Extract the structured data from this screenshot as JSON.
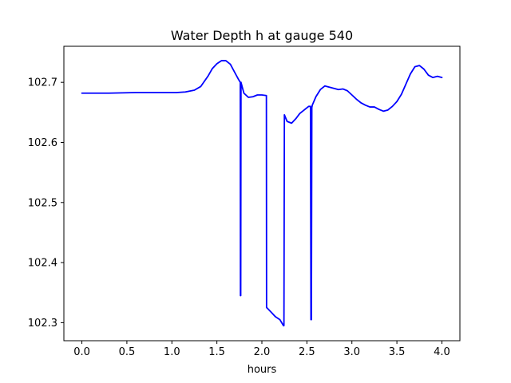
{
  "chart_data": {
    "type": "line",
    "title": "Water Depth h at gauge 540",
    "xlabel": "hours",
    "ylabel": "",
    "xlim": [
      -0.2,
      4.2
    ],
    "ylim": [
      102.27,
      102.76
    ],
    "xticks": [
      0.0,
      0.5,
      1.0,
      1.5,
      2.0,
      2.5,
      3.0,
      3.5,
      4.0
    ],
    "xtick_labels": [
      "0.0",
      "0.5",
      "1.0",
      "1.5",
      "2.0",
      "2.5",
      "3.0",
      "3.5",
      "4.0"
    ],
    "yticks": [
      102.3,
      102.4,
      102.5,
      102.6,
      102.7
    ],
    "ytick_labels": [
      "102.3",
      "102.4",
      "102.5",
      "102.6",
      "102.7"
    ],
    "grid": false,
    "series": [
      {
        "color": "#0000ff",
        "x": [
          0.0,
          0.3,
          0.6,
          0.9,
          1.05,
          1.15,
          1.25,
          1.32,
          1.4,
          1.45,
          1.5,
          1.55,
          1.6,
          1.65,
          1.7,
          1.74,
          1.76,
          1.762,
          1.765,
          1.768,
          1.775,
          1.8,
          1.85,
          1.9,
          1.95,
          2.0,
          2.05,
          2.052,
          2.055,
          2.1,
          2.15,
          2.2,
          2.24,
          2.245,
          2.25,
          2.28,
          2.33,
          2.38,
          2.42,
          2.47,
          2.52,
          2.54,
          2.545,
          2.55,
          2.555,
          2.56,
          2.6,
          2.65,
          2.7,
          2.75,
          2.8,
          2.85,
          2.9,
          2.95,
          3.0,
          3.05,
          3.1,
          3.15,
          3.2,
          3.25,
          3.3,
          3.35,
          3.4,
          3.45,
          3.5,
          3.55,
          3.6,
          3.65,
          3.7,
          3.75,
          3.8,
          3.85,
          3.9,
          3.95,
          4.0
        ],
        "y": [
          102.682,
          102.682,
          102.683,
          102.683,
          102.683,
          102.684,
          102.687,
          102.693,
          102.71,
          102.723,
          102.731,
          102.736,
          102.736,
          102.73,
          102.716,
          102.705,
          102.7,
          102.345,
          102.345,
          102.7,
          102.696,
          102.682,
          102.675,
          102.676,
          102.679,
          102.679,
          102.678,
          102.325,
          102.325,
          102.318,
          102.31,
          102.305,
          102.295,
          102.295,
          102.646,
          102.635,
          102.632,
          102.64,
          102.648,
          102.654,
          102.66,
          102.66,
          102.305,
          102.305,
          102.658,
          102.662,
          102.676,
          102.688,
          102.694,
          102.692,
          102.69,
          102.688,
          102.689,
          102.686,
          102.679,
          102.672,
          102.666,
          102.662,
          102.659,
          102.659,
          102.655,
          102.652,
          102.654,
          102.66,
          102.668,
          102.68,
          102.697,
          102.714,
          102.726,
          102.728,
          102.722,
          102.712,
          102.708,
          102.71,
          102.708
        ]
      }
    ]
  }
}
